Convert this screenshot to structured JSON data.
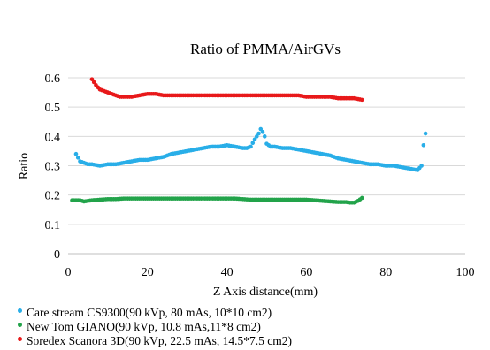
{
  "chart_data": {
    "type": "scatter",
    "title": "Ratio of PMMA/AirGVs",
    "xlabel": "Z Axis distance(mm)",
    "ylabel": "Ratio",
    "xlim": [
      0,
      100
    ],
    "ylim": [
      0,
      0.6
    ],
    "xticks": [
      0,
      20,
      40,
      60,
      80,
      100
    ],
    "yticks": [
      0,
      0.1,
      0.2,
      0.3,
      0.4,
      0.5,
      0.6
    ],
    "xtick_labels": [
      "0",
      "20",
      "40",
      "60",
      "80",
      "100"
    ],
    "ytick_labels": [
      "0",
      "0.1",
      "0.2",
      "0.3",
      "0.4",
      "0.5",
      "0.6"
    ],
    "grid": "horizontal",
    "legend_position": "bottom",
    "series": [
      {
        "name": "Care stream CS9300(90 kVp, 80 mAs, 10*10 cm2)",
        "color": "#29aee8",
        "x": [
          2,
          3,
          4,
          5,
          6,
          8,
          10,
          12,
          14,
          16,
          18,
          20,
          22,
          24,
          26,
          28,
          30,
          32,
          34,
          36,
          38,
          40,
          42,
          44,
          45,
          46,
          47,
          48,
          48.5,
          49,
          49.5,
          50,
          51,
          52,
          54,
          56,
          58,
          60,
          62,
          64,
          66,
          68,
          70,
          72,
          74,
          76,
          78,
          80,
          82,
          84,
          86,
          88,
          89,
          89.5,
          90
        ],
        "y": [
          0.34,
          0.315,
          0.31,
          0.305,
          0.305,
          0.3,
          0.305,
          0.305,
          0.31,
          0.315,
          0.32,
          0.32,
          0.325,
          0.33,
          0.34,
          0.345,
          0.35,
          0.355,
          0.36,
          0.365,
          0.365,
          0.37,
          0.365,
          0.36,
          0.36,
          0.365,
          0.39,
          0.41,
          0.425,
          0.415,
          0.4,
          0.375,
          0.365,
          0.365,
          0.36,
          0.36,
          0.355,
          0.35,
          0.345,
          0.34,
          0.335,
          0.325,
          0.32,
          0.315,
          0.31,
          0.305,
          0.305,
          0.3,
          0.3,
          0.295,
          0.29,
          0.285,
          0.3,
          0.37,
          0.41
        ]
      },
      {
        "name": "New Tom GIANO(90 kVp, 10.8 mAs,11*8 cm2)",
        "color": "#22a34a",
        "x": [
          1,
          2,
          3,
          4,
          6,
          8,
          10,
          12,
          14,
          16,
          18,
          20,
          22,
          24,
          26,
          28,
          30,
          32,
          34,
          36,
          38,
          40,
          42,
          44,
          46,
          48,
          50,
          52,
          54,
          56,
          58,
          60,
          62,
          64,
          66,
          68,
          70,
          71,
          72,
          73,
          74
        ],
        "y": [
          0.182,
          0.182,
          0.182,
          0.178,
          0.182,
          0.184,
          0.186,
          0.186,
          0.188,
          0.188,
          0.188,
          0.188,
          0.188,
          0.188,
          0.188,
          0.188,
          0.188,
          0.188,
          0.188,
          0.188,
          0.188,
          0.188,
          0.188,
          0.186,
          0.184,
          0.184,
          0.184,
          0.184,
          0.184,
          0.184,
          0.184,
          0.184,
          0.182,
          0.18,
          0.178,
          0.176,
          0.176,
          0.174,
          0.174,
          0.18,
          0.19
        ]
      },
      {
        "name": "Soredex Scanora 3D(90 kVp, 22.5 mAs, 14.5*7.5 cm2)",
        "color": "#e8191a",
        "x": [
          6,
          7,
          8,
          9,
          10,
          11,
          12,
          13,
          14,
          16,
          18,
          20,
          22,
          24,
          26,
          28,
          30,
          32,
          34,
          36,
          38,
          40,
          42,
          44,
          46,
          48,
          50,
          52,
          54,
          56,
          58,
          60,
          62,
          64,
          66,
          68,
          70,
          72,
          74
        ],
        "y": [
          0.595,
          0.575,
          0.56,
          0.555,
          0.55,
          0.545,
          0.54,
          0.535,
          0.535,
          0.535,
          0.54,
          0.545,
          0.545,
          0.54,
          0.54,
          0.54,
          0.54,
          0.54,
          0.54,
          0.54,
          0.54,
          0.54,
          0.54,
          0.54,
          0.54,
          0.54,
          0.54,
          0.54,
          0.54,
          0.54,
          0.54,
          0.535,
          0.535,
          0.535,
          0.535,
          0.53,
          0.53,
          0.53,
          0.525
        ]
      }
    ]
  }
}
